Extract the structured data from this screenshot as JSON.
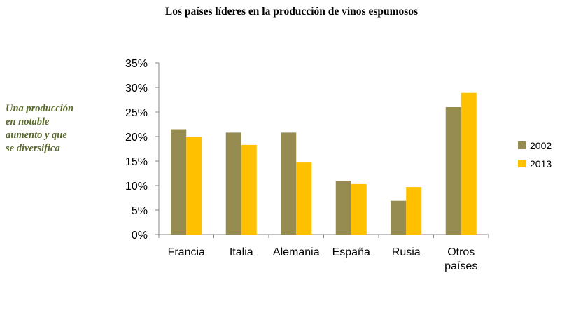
{
  "title": "Los países líderes en la producción de vinos espumosos",
  "side_note": [
    "Una producción",
    "en notable",
    "aumento y que",
    "se diversifica"
  ],
  "colors": {
    "series_2002": "#968c52",
    "series_2013": "#ffc000",
    "axis": "#868686",
    "note": "#5b6b2e"
  },
  "chart_data": {
    "type": "bar",
    "categories": [
      [
        "Francia"
      ],
      [
        "Italia"
      ],
      [
        "Alemania"
      ],
      [
        "España"
      ],
      [
        "Rusia"
      ],
      [
        "Otros",
        "países"
      ]
    ],
    "series": [
      {
        "name": "2002",
        "values": [
          21.5,
          20.8,
          20.8,
          11.0,
          6.9,
          26.0
        ]
      },
      {
        "name": "2013",
        "values": [
          20.0,
          18.3,
          14.7,
          10.3,
          9.7,
          28.9
        ]
      }
    ],
    "y_ticks": [
      "0%",
      "5%",
      "10%",
      "15%",
      "20%",
      "25%",
      "30%",
      "35%"
    ],
    "ylim": [
      0,
      35
    ],
    "unit": "%",
    "grid": false,
    "legend_position": "right"
  }
}
